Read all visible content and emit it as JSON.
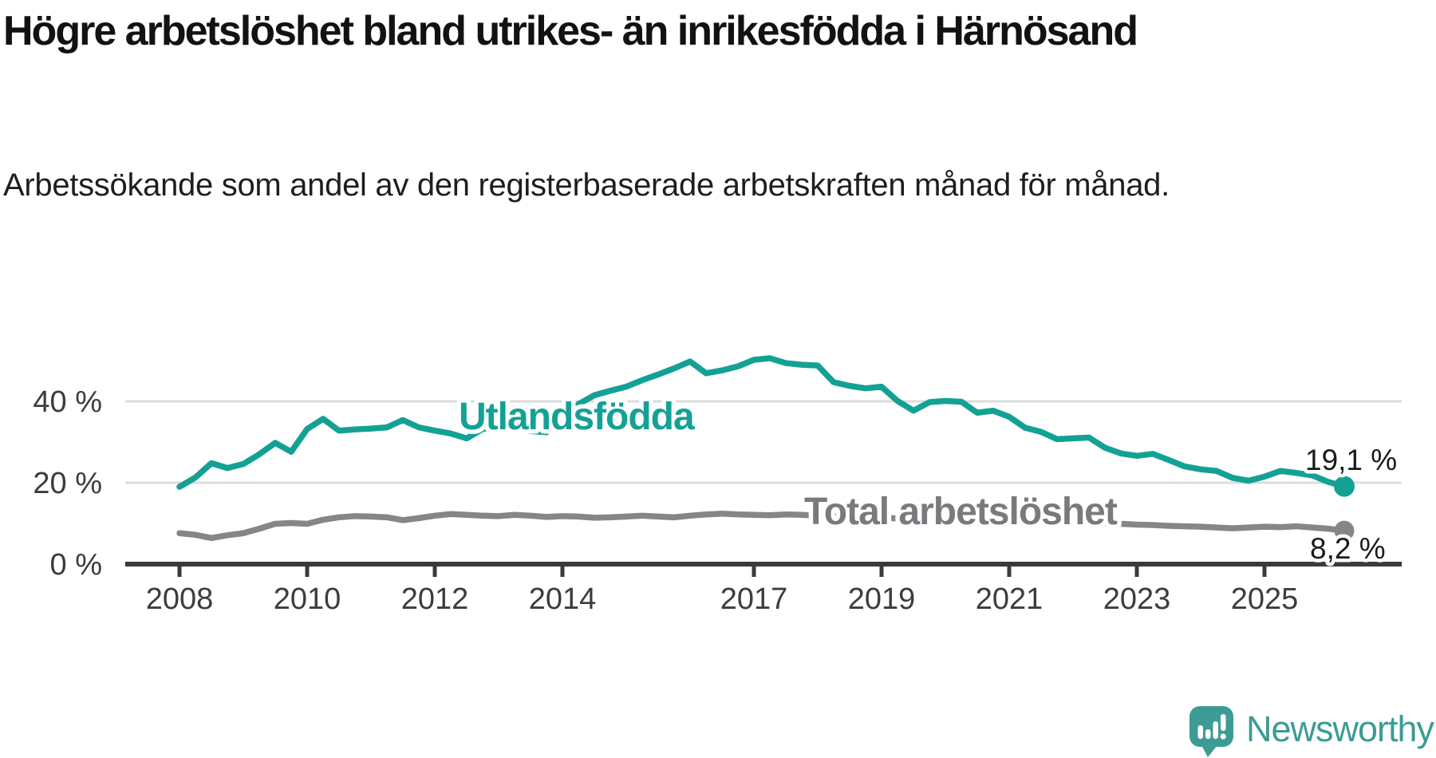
{
  "header": {
    "title": "Högre arbetslöshet bland utrikes- än inrikesfödda i Härnösand",
    "subtitle": "Arbetssökande som andel av den registerbaserade arbetskraften månad för månad."
  },
  "chart_data": {
    "type": "line",
    "title": "Högre arbetslöshet bland utrikes- än inrikesfödda i Härnösand",
    "xlabel": "",
    "ylabel": "",
    "grid": "horizontal",
    "legend": "inline-labels",
    "xlim": [
      2007.15,
      2027.15
    ],
    "ylim": [
      0,
      56
    ],
    "x_ticks": {
      "years": [
        2008,
        2010,
        2012,
        2014,
        2017,
        2019,
        2021,
        2023,
        2025
      ],
      "labels": [
        "2008",
        "2010",
        "2012",
        "2014",
        "2017",
        "2019",
        "2021",
        "2023",
        "2025"
      ]
    },
    "y_ticks": {
      "values": [
        0,
        20,
        40
      ],
      "labels": [
        "0 %",
        "20 %",
        "40 %"
      ]
    },
    "x": [
      2008,
      2008.25,
      2008.5,
      2008.75,
      2009,
      2009.25,
      2009.5,
      2009.75,
      2010,
      2010.25,
      2010.5,
      2010.75,
      2011,
      2011.25,
      2011.5,
      2011.75,
      2012,
      2012.25,
      2012.5,
      2012.75,
      2013,
      2013.25,
      2013.5,
      2013.75,
      2014,
      2014.25,
      2014.5,
      2014.75,
      2015,
      2015.25,
      2015.5,
      2015.75,
      2016,
      2016.25,
      2016.5,
      2016.75,
      2017,
      2017.25,
      2017.5,
      2017.75,
      2018,
      2018.25,
      2018.5,
      2018.75,
      2019,
      2019.25,
      2019.5,
      2019.75,
      2020,
      2020.25,
      2020.5,
      2020.75,
      2021,
      2021.25,
      2021.5,
      2021.75,
      2022,
      2022.25,
      2022.5,
      2022.75,
      2023,
      2023.25,
      2023.5,
      2023.75,
      2024,
      2024.25,
      2024.5,
      2024.75,
      2025,
      2025.25,
      2025.5,
      2025.75,
      2026,
      2026.25
    ],
    "series": [
      {
        "name": "Utlandsfödda",
        "color": "#14a195",
        "label_color": "#14a195",
        "end_label": "19,1 %",
        "last_value": 19.1,
        "values": [
          19.0,
          21.3,
          24.8,
          23.6,
          24.6,
          27.0,
          29.8,
          27.6,
          33.2,
          35.7,
          32.8,
          33.1,
          33.3,
          33.6,
          35.4,
          33.6,
          32.8,
          32.1,
          30.9,
          33.2,
          33.9,
          33.3,
          32.7,
          32.4,
          36.0,
          39.3,
          41.5,
          42.6,
          43.6,
          45.2,
          46.6,
          48.1,
          49.8,
          46.9,
          47.6,
          48.6,
          50.2,
          50.6,
          49.4,
          49.0,
          48.8,
          44.7,
          43.8,
          43.2,
          43.6,
          40.1,
          37.7,
          39.8,
          40.1,
          39.9,
          37.2,
          37.7,
          36.2,
          33.5,
          32.5,
          30.7,
          30.9,
          31.1,
          28.6,
          27.2,
          26.6,
          27.1,
          25.6,
          24.0,
          23.3,
          22.9,
          21.2,
          20.5,
          21.5,
          22.9,
          22.4,
          21.8,
          20.2,
          19.1
        ]
      },
      {
        "name": "Total arbetslöshet",
        "color": "#85858a",
        "label_color": "#7a7a7e",
        "end_label": "8,2 %",
        "last_value": 8.2,
        "values": [
          7.6,
          7.2,
          6.4,
          7.1,
          7.6,
          8.7,
          9.9,
          10.1,
          9.9,
          10.9,
          11.5,
          11.8,
          11.7,
          11.5,
          10.8,
          11.3,
          11.9,
          12.3,
          12.1,
          11.9,
          11.8,
          12.1,
          11.9,
          11.6,
          11.8,
          11.7,
          11.4,
          11.5,
          11.7,
          11.9,
          11.7,
          11.5,
          11.9,
          12.2,
          12.4,
          12.2,
          12.1,
          12.0,
          12.2,
          12.1,
          11.9,
          11.8,
          12.0,
          11.7,
          11.5,
          11.2,
          11.0,
          11.3,
          11.6,
          12.2,
          12.4,
          12.1,
          11.6,
          11.2,
          10.9,
          10.6,
          10.4,
          10.3,
          10.1,
          9.9,
          9.7,
          9.6,
          9.4,
          9.3,
          9.2,
          9.0,
          8.8,
          9.0,
          9.2,
          9.1,
          9.3,
          9.0,
          8.7,
          8.2
        ]
      }
    ]
  },
  "branding": {
    "name": "Newsworthy",
    "color": "#3d9b95",
    "icon": "newsworthy-speech-bubble-chart-icon"
  }
}
